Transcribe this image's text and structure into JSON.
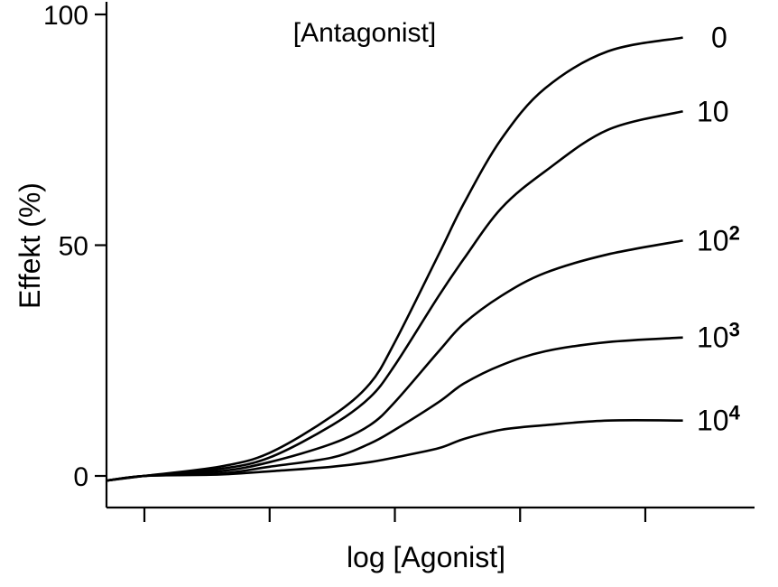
{
  "chart_data": {
    "type": "line",
    "title": "",
    "xlabel": "log [Agonist]",
    "ylabel": "Effekt (%)",
    "ylim": [
      0,
      100
    ],
    "yticks": [
      0,
      50,
      100
    ],
    "ytick_labels": [
      "0",
      "50",
      "100"
    ],
    "xticks": [
      1,
      2,
      3,
      4,
      5
    ],
    "xtick_labels": [],
    "xlim": [
      0.7,
      5.8
    ],
    "grid": false,
    "legend_title": "[Antagonist]",
    "legend_placement": "top-center",
    "series_labels_position": "right end of each curve",
    "x": [
      0.7,
      1.0,
      1.6,
      2.0,
      2.5,
      2.8,
      3.0,
      3.35,
      3.55,
      3.85,
      4.2,
      4.7,
      5.3
    ],
    "series": [
      {
        "name": "0",
        "label_base": "0",
        "label_exp": "",
        "values": [
          -1,
          0,
          2,
          5,
          13,
          20,
          29,
          48,
          59,
          73,
          84,
          92,
          95
        ]
      },
      {
        "name": "10",
        "label_base": "10",
        "label_exp": "",
        "values": [
          -1,
          0,
          1.5,
          4,
          11,
          17,
          24,
          39,
          47,
          58,
          66,
          75,
          79
        ]
      },
      {
        "name": "10^2",
        "label_base": "10",
        "label_exp": "2",
        "values": [
          -1,
          0,
          1,
          3,
          7,
          11,
          16,
          27,
          33,
          39,
          44,
          48,
          51
        ]
      },
      {
        "name": "10^3",
        "label_base": "10",
        "label_exp": "3",
        "values": [
          -1,
          0,
          0.5,
          2,
          4,
          7,
          10,
          16,
          20,
          24,
          27,
          29,
          30
        ]
      },
      {
        "name": "10^4",
        "label_base": "10",
        "label_exp": "4",
        "values": [
          -1,
          0,
          0.3,
          1,
          2,
          3,
          4,
          6,
          8,
          10,
          11,
          12,
          12
        ]
      }
    ]
  }
}
